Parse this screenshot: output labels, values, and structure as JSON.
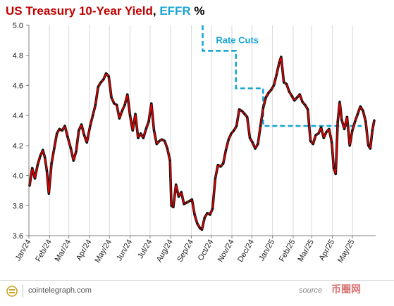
{
  "title": {
    "part1": "US Treasury 10-Year Yield",
    "sep": ", ",
    "part2": "EFFR",
    "part3": " %",
    "color1": "#c00000",
    "color2": "#1aa5d6",
    "color3": "#000000"
  },
  "footer": {
    "site": "cointelegraph.com",
    "source": "source",
    "watermark": "币圈网"
  },
  "chart_data": {
    "type": "line",
    "title": "US Treasury 10-Year Yield, EFFR %",
    "xlabel": "",
    "ylabel": "",
    "ylim": [
      3.6,
      5.0
    ],
    "yticks": [
      3.6,
      3.8,
      4.0,
      4.2,
      4.4,
      4.6,
      4.8,
      5.0
    ],
    "ytick_labels": [
      "3.6",
      "3.8",
      "4.0",
      "4.2",
      "4.4",
      "4.6",
      "4.8",
      "5.0"
    ],
    "xlim": [
      "2024-01-01",
      "2025-06-05"
    ],
    "xtick_labels": [
      "Jan/24",
      "Feb/24",
      "Mar/24",
      "Apr/24",
      "May/24",
      "Jun/24",
      "Jul/24",
      "Aug/24",
      "Sep/24",
      "Oct/24",
      "Nov/24",
      "Dec/24",
      "Jan/25",
      "Feb/25",
      "Mar/25",
      "Apr/25",
      "May/25"
    ],
    "xtick_dates": [
      "2024-01-01",
      "2024-02-01",
      "2024-03-01",
      "2024-04-01",
      "2024-05-01",
      "2024-06-01",
      "2024-07-01",
      "2024-08-01",
      "2024-09-01",
      "2024-10-01",
      "2024-11-01",
      "2024-12-01",
      "2025-01-01",
      "2025-02-01",
      "2025-03-01",
      "2025-04-01",
      "2025-05-01"
    ],
    "grid": "vertical",
    "annotations": [
      {
        "text": "Rate Cuts",
        "color": "#1aa5d6"
      }
    ],
    "series": [
      {
        "name": "US Treasury 10-Year Yield",
        "color": "#e00000",
        "style": "solid",
        "x": [
          "2024-01-02",
          "2024-01-06",
          "2024-01-10",
          "2024-01-14",
          "2024-01-18",
          "2024-01-22",
          "2024-01-25",
          "2024-01-28",
          "2024-01-31",
          "2024-02-04",
          "2024-02-08",
          "2024-02-12",
          "2024-02-16",
          "2024-02-20",
          "2024-02-24",
          "2024-02-28",
          "2024-03-04",
          "2024-03-08",
          "2024-03-12",
          "2024-03-16",
          "2024-03-20",
          "2024-03-24",
          "2024-03-28",
          "2024-04-02",
          "2024-04-06",
          "2024-04-10",
          "2024-04-14",
          "2024-04-18",
          "2024-04-22",
          "2024-04-26",
          "2024-04-30",
          "2024-05-04",
          "2024-05-08",
          "2024-05-12",
          "2024-05-16",
          "2024-05-20",
          "2024-05-24",
          "2024-05-28",
          "2024-06-01",
          "2024-06-05",
          "2024-06-09",
          "2024-06-13",
          "2024-06-17",
          "2024-06-21",
          "2024-06-25",
          "2024-06-29",
          "2024-07-03",
          "2024-07-07",
          "2024-07-11",
          "2024-07-15",
          "2024-07-19",
          "2024-07-23",
          "2024-07-27",
          "2024-07-31",
          "2024-08-02",
          "2024-08-05",
          "2024-08-09",
          "2024-08-13",
          "2024-08-17",
          "2024-08-21",
          "2024-08-25",
          "2024-08-29",
          "2024-09-02",
          "2024-09-06",
          "2024-09-10",
          "2024-09-14",
          "2024-09-17",
          "2024-09-21",
          "2024-09-25",
          "2024-09-29",
          "2024-10-03",
          "2024-10-07",
          "2024-10-11",
          "2024-10-15",
          "2024-10-19",
          "2024-10-23",
          "2024-10-27",
          "2024-10-31",
          "2024-11-04",
          "2024-11-08",
          "2024-11-12",
          "2024-11-16",
          "2024-11-20",
          "2024-11-24",
          "2024-11-28",
          "2024-12-02",
          "2024-12-06",
          "2024-12-10",
          "2024-12-14",
          "2024-12-18",
          "2024-12-22",
          "2024-12-26",
          "2024-12-30",
          "2025-01-03",
          "2025-01-07",
          "2025-01-11",
          "2025-01-14",
          "2025-01-18",
          "2025-01-22",
          "2025-01-26",
          "2025-01-30",
          "2025-02-03",
          "2025-02-07",
          "2025-02-11",
          "2025-02-15",
          "2025-02-19",
          "2025-02-23",
          "2025-02-27",
          "2025-03-03",
          "2025-03-07",
          "2025-03-11",
          "2025-03-15",
          "2025-03-19",
          "2025-03-23",
          "2025-03-27",
          "2025-03-31",
          "2025-04-03",
          "2025-04-06",
          "2025-04-09",
          "2025-04-12",
          "2025-04-15",
          "2025-04-19",
          "2025-04-23",
          "2025-04-27",
          "2025-05-01",
          "2025-05-05",
          "2025-05-09",
          "2025-05-13",
          "2025-05-17",
          "2025-05-21",
          "2025-05-25",
          "2025-05-28",
          "2025-05-31",
          "2025-06-03"
        ],
        "y": [
          3.93,
          4.05,
          3.98,
          4.07,
          4.13,
          4.17,
          4.12,
          4.03,
          3.88,
          4.08,
          4.18,
          4.28,
          4.31,
          4.3,
          4.33,
          4.26,
          4.18,
          4.1,
          4.16,
          4.3,
          4.34,
          4.27,
          4.22,
          4.33,
          4.4,
          4.47,
          4.59,
          4.62,
          4.64,
          4.68,
          4.66,
          4.52,
          4.48,
          4.47,
          4.38,
          4.43,
          4.47,
          4.54,
          4.4,
          4.3,
          4.41,
          4.25,
          4.28,
          4.25,
          4.31,
          4.36,
          4.48,
          4.3,
          4.21,
          4.23,
          4.24,
          4.23,
          4.18,
          4.1,
          3.8,
          3.79,
          3.94,
          3.86,
          3.89,
          3.81,
          3.82,
          3.83,
          3.84,
          3.74,
          3.68,
          3.65,
          3.64,
          3.72,
          3.75,
          3.74,
          3.78,
          3.98,
          4.07,
          4.06,
          4.08,
          4.17,
          4.24,
          4.28,
          4.3,
          4.33,
          4.44,
          4.43,
          4.41,
          4.39,
          4.25,
          4.22,
          4.18,
          4.21,
          4.33,
          4.45,
          4.52,
          4.55,
          4.57,
          4.6,
          4.67,
          4.75,
          4.79,
          4.62,
          4.61,
          4.56,
          4.53,
          4.5,
          4.52,
          4.54,
          4.49,
          4.47,
          4.44,
          4.23,
          4.21,
          4.27,
          4.28,
          4.32,
          4.25,
          4.29,
          4.31,
          4.22,
          4.05,
          4.01,
          4.36,
          4.49,
          4.37,
          4.31,
          4.39,
          4.2,
          4.3,
          4.36,
          4.41,
          4.46,
          4.43,
          4.36,
          4.2,
          4.18,
          4.3,
          4.37
        ]
      },
      {
        "name": "EFFR",
        "color": "#1aa5d6",
        "style": "dashed",
        "x": [
          "2024-09-18",
          "2024-09-18",
          "2024-11-07",
          "2024-11-07",
          "2024-12-18",
          "2024-12-18",
          "2025-05-15"
        ],
        "y": [
          5.0,
          4.83,
          4.83,
          4.58,
          4.58,
          4.33,
          4.33
        ]
      }
    ]
  }
}
